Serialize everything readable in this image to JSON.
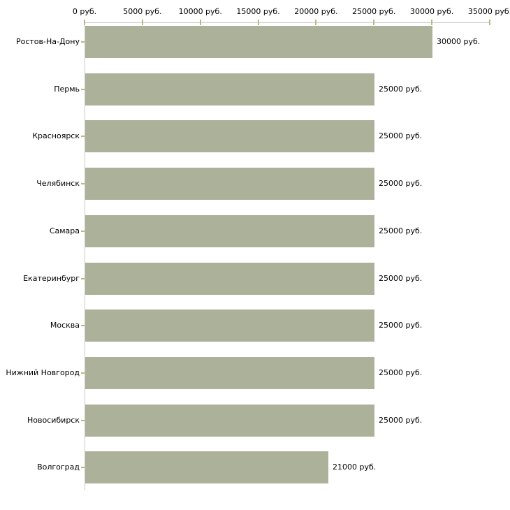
{
  "chart_data": {
    "type": "bar",
    "orientation": "horizontal",
    "title": "",
    "xlabel": "",
    "ylabel": "",
    "categories": [
      "Ростов-На-Дону",
      "Пермь",
      "Красноярск",
      "Челябинск",
      "Самара",
      "Екатеринбург",
      "Москва",
      "Нижний Новгород",
      "Новосибирск",
      "Волгоград"
    ],
    "values": [
      30000,
      25000,
      25000,
      25000,
      25000,
      25000,
      25000,
      25000,
      25000,
      21000
    ],
    "value_labels": [
      "30000 руб.",
      "25000 руб.",
      "25000 руб.",
      "25000 руб.",
      "25000 руб.",
      "25000 руб.",
      "25000 руб.",
      "25000 руб.",
      "25000 руб.",
      "21000 руб."
    ],
    "x_ticks": [
      0,
      5000,
      10000,
      15000,
      20000,
      25000,
      30000,
      35000
    ],
    "x_tick_labels": [
      "0 руб.",
      "5000 руб.",
      "10000 руб.",
      "15000 руб.",
      "20000 руб.",
      "25000 руб.",
      "30000 руб.",
      "35000 руб."
    ],
    "xlim": [
      0,
      35000
    ],
    "grid": false,
    "legend": false,
    "axis_position": "top",
    "colors": {
      "bar_fill": "#acb199",
      "axis_line": "#c9c9c9",
      "tick_mark": "#b9b97a",
      "text": "#000000",
      "background": "#ffffff"
    }
  }
}
